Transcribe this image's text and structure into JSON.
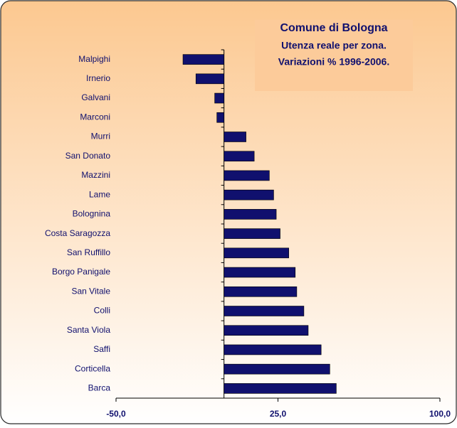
{
  "chart_data": {
    "type": "bar",
    "orientation": "horizontal",
    "title": "Comune di Bologna",
    "subtitle": [
      "Utenza reale per zona.",
      "Variazioni % 1996-2006."
    ],
    "categories": [
      "Malpighi",
      "Irnerio",
      "Galvani",
      "Marconi",
      "Murri",
      "San Donato",
      "Mazzini",
      "Lame",
      "Bolognina",
      "Costa Saragozza",
      "San Ruffillo",
      "Borgo Panigale",
      "San Vitale",
      "Colli",
      "Santa Viola",
      "Saffi",
      "Corticella",
      "Barca"
    ],
    "values": [
      -19,
      -13,
      -4.3,
      -3.3,
      10.2,
      14,
      21,
      23,
      24.2,
      26,
      30,
      33,
      33.7,
      37,
      39,
      45,
      49,
      52
    ],
    "color": "#10106e",
    "xlim": [
      -50,
      100
    ],
    "xticks": [
      {
        "value": -50,
        "label": "-50,0"
      },
      {
        "value": 25,
        "label": "25,0"
      },
      {
        "value": 100,
        "label": "100,0"
      }
    ]
  }
}
